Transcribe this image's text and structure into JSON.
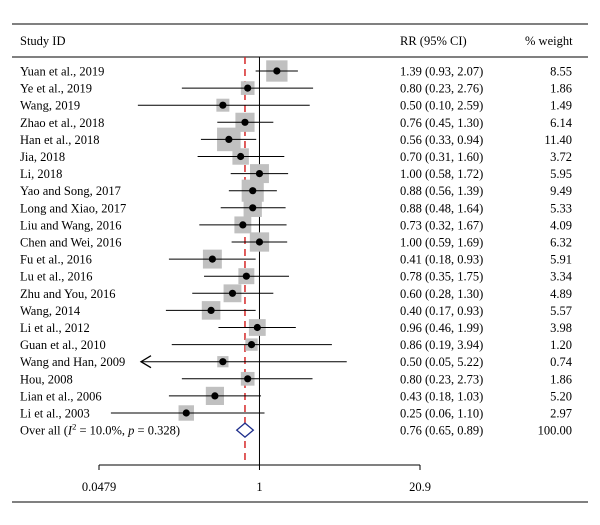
{
  "header": {
    "study": "Study ID",
    "rr": "RR (95% CI)",
    "weight": "% weight"
  },
  "chart_data": {
    "type": "forest",
    "xscale": "log",
    "xlim": [
      0.0479,
      20.9
    ],
    "xticks": [
      "0.0479",
      "1",
      "20.9"
    ],
    "null_line": 1,
    "overall_line": 0.76,
    "studies": [
      {
        "label": "Yuan et al., 2019",
        "rr": 1.39,
        "lo": 0.93,
        "hi": 2.07,
        "ci_text": "1.39 (0.93, 2.07)",
        "weight": 8.55,
        "weight_text": "8.55"
      },
      {
        "label": "Ye et al., 2019",
        "rr": 0.8,
        "lo": 0.23,
        "hi": 2.76,
        "ci_text": "0.80 (0.23, 2.76)",
        "weight": 1.86,
        "weight_text": "1.86"
      },
      {
        "label": "Wang, 2019",
        "rr": 0.5,
        "lo": 0.1,
        "hi": 2.59,
        "ci_text": "0.50 (0.10, 2.59)",
        "weight": 1.49,
        "weight_text": "1.49"
      },
      {
        "label": "Zhao et al., 2018",
        "rr": 0.76,
        "lo": 0.45,
        "hi": 1.3,
        "ci_text": "0.76 (0.45, 1.30)",
        "weight": 6.14,
        "weight_text": "6.14"
      },
      {
        "label": "Han et al., 2018",
        "rr": 0.56,
        "lo": 0.33,
        "hi": 0.94,
        "ci_text": "0.56 (0.33, 0.94)",
        "weight": 11.4,
        "weight_text": "11.40"
      },
      {
        "label": "Jia, 2018",
        "rr": 0.7,
        "lo": 0.31,
        "hi": 1.6,
        "ci_text": "0.70 (0.31, 1.60)",
        "weight": 3.72,
        "weight_text": "3.72"
      },
      {
        "label": "Li, 2018",
        "rr": 1.0,
        "lo": 0.58,
        "hi": 1.72,
        "ci_text": "1.00 (0.58, 1.72)",
        "weight": 5.95,
        "weight_text": "5.95"
      },
      {
        "label": "Yao and Song, 2017",
        "rr": 0.88,
        "lo": 0.56,
        "hi": 1.39,
        "ci_text": "0.88 (0.56, 1.39)",
        "weight": 9.49,
        "weight_text": "9.49"
      },
      {
        "label": "Long and Xiao, 2017",
        "rr": 0.88,
        "lo": 0.48,
        "hi": 1.64,
        "ci_text": "0.88 (0.48, 1.64)",
        "weight": 5.33,
        "weight_text": "5.33"
      },
      {
        "label": "Liu and Wang, 2016",
        "rr": 0.73,
        "lo": 0.32,
        "hi": 1.67,
        "ci_text": "0.73 (0.32, 1.67)",
        "weight": 4.09,
        "weight_text": "4.09"
      },
      {
        "label": "Chen and Wei, 2016",
        "rr": 1.0,
        "lo": 0.59,
        "hi": 1.69,
        "ci_text": "1.00 (0.59, 1.69)",
        "weight": 6.32,
        "weight_text": "6.32"
      },
      {
        "label": "Fu et al., 2016",
        "rr": 0.41,
        "lo": 0.18,
        "hi": 0.93,
        "ci_text": "0.41 (0.18, 0.93)",
        "weight": 5.91,
        "weight_text": "5.91"
      },
      {
        "label": "Lu et al., 2016",
        "rr": 0.78,
        "lo": 0.35,
        "hi": 1.75,
        "ci_text": "0.78 (0.35, 1.75)",
        "weight": 3.34,
        "weight_text": "3.34"
      },
      {
        "label": "Zhu and You, 2016",
        "rr": 0.6,
        "lo": 0.28,
        "hi": 1.3,
        "ci_text": "0.60 (0.28, 1.30)",
        "weight": 4.89,
        "weight_text": "4.89"
      },
      {
        "label": "Wang, 2014",
        "rr": 0.4,
        "lo": 0.17,
        "hi": 0.93,
        "ci_text": "0.40 (0.17, 0.93)",
        "weight": 5.57,
        "weight_text": "5.57"
      },
      {
        "label": "Li et al., 2012",
        "rr": 0.96,
        "lo": 0.46,
        "hi": 1.99,
        "ci_text": "0.96 (0.46, 1.99)",
        "weight": 3.98,
        "weight_text": "3.98"
      },
      {
        "label": "Guan et al., 2010",
        "rr": 0.86,
        "lo": 0.19,
        "hi": 3.94,
        "ci_text": "0.86 (0.19, 3.94)",
        "weight": 1.2,
        "weight_text": "1.20"
      },
      {
        "label": "Wang and Han, 2009",
        "rr": 0.5,
        "lo": 0.05,
        "hi": 5.22,
        "ci_text": "0.50 (0.05, 5.22)",
        "weight": 0.74,
        "weight_text": "0.74",
        "arrow_left": true
      },
      {
        "label": "Hou, 2008",
        "rr": 0.8,
        "lo": 0.23,
        "hi": 2.73,
        "ci_text": "0.80 (0.23, 2.73)",
        "weight": 1.86,
        "weight_text": "1.86"
      },
      {
        "label": "Lian et al., 2006",
        "rr": 0.43,
        "lo": 0.18,
        "hi": 1.03,
        "ci_text": "0.43 (0.18, 1.03)",
        "weight": 5.2,
        "weight_text": "5.20"
      },
      {
        "label": "Li et al., 2003",
        "rr": 0.25,
        "lo": 0.06,
        "hi": 1.1,
        "ci_text": "0.25 (0.06, 1.10)",
        "weight": 2.97,
        "weight_text": "2.97"
      }
    ],
    "overall": {
      "label_prefix": "Over all (",
      "label_i2": "I",
      "label_i2_sup": "2",
      "label_i2_rest": " = 10.0%, ",
      "label_p": "p",
      "label_rest": " = 0.328)",
      "rr": 0.76,
      "lo": 0.65,
      "hi": 0.89,
      "ci_text": "0.76 (0.65, 0.89)",
      "weight_text": "100.00"
    },
    "colors": {
      "box": "#c0c0c0",
      "null_line": "#000000",
      "overall_line": "#d62728",
      "diamond": "#1f2f8c",
      "line": "#000000"
    }
  }
}
